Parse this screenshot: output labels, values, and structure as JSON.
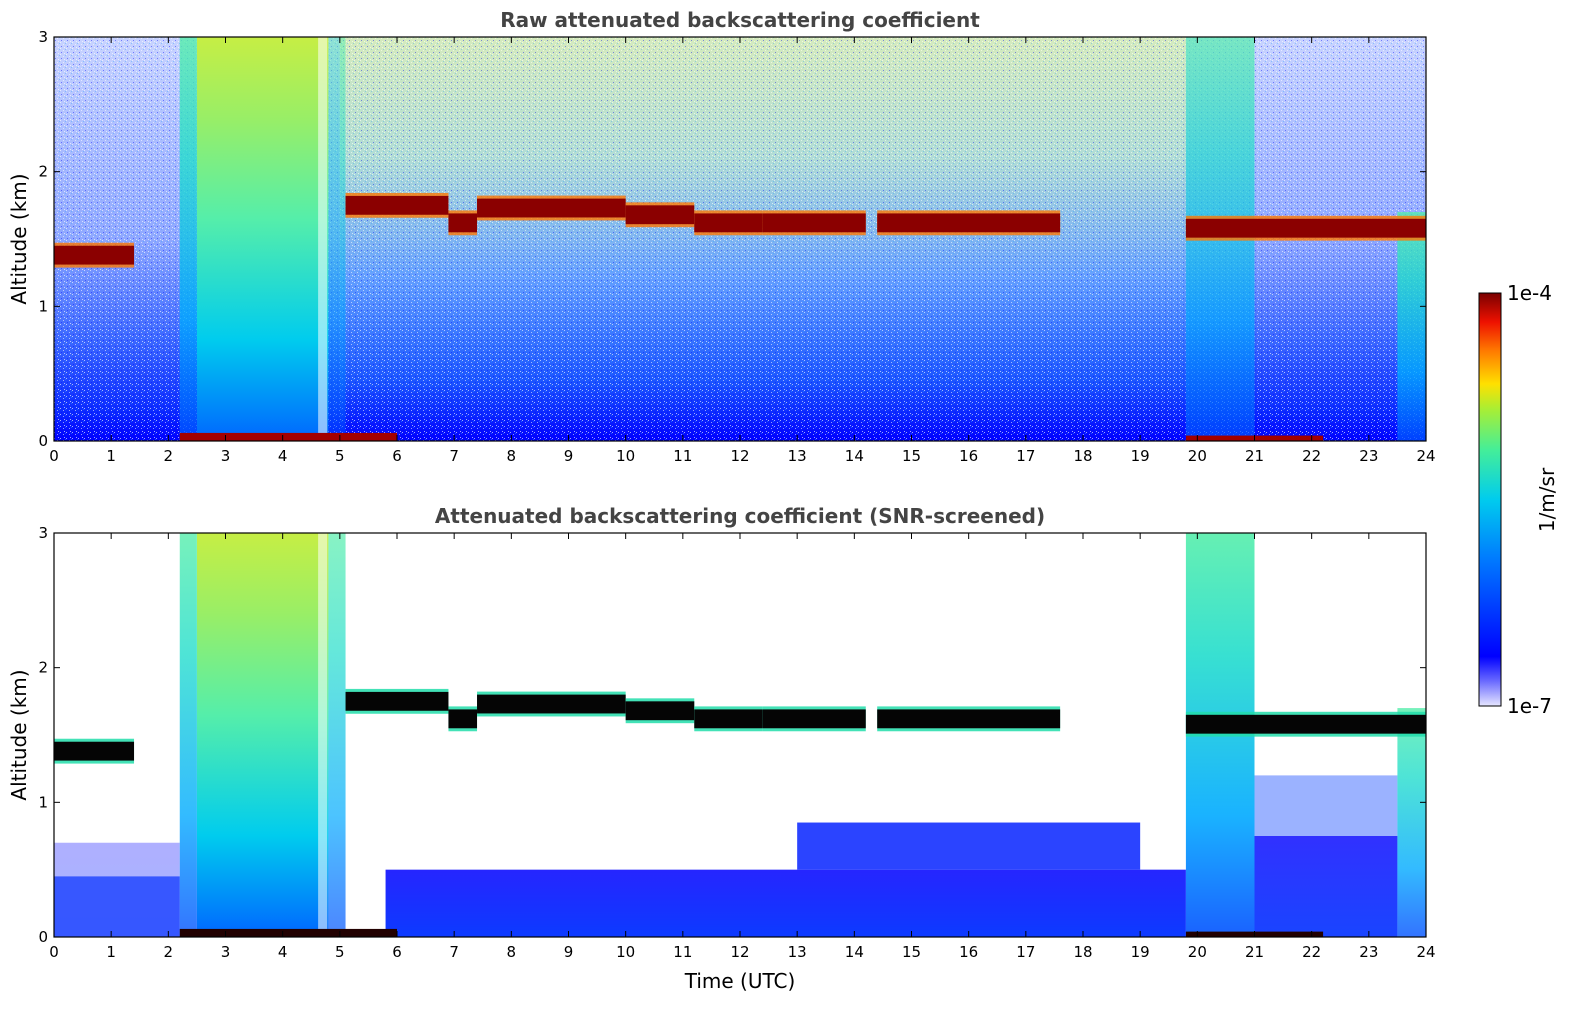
{
  "chart_data": [
    {
      "type": "heatmap",
      "id": "raw",
      "title": "Raw attenuated backscattering coefficient",
      "xlabel": "",
      "ylabel": "Altitude (km)",
      "xlim": [
        0,
        24
      ],
      "ylim": [
        0,
        3
      ],
      "xticks": [
        "0",
        "1",
        "2",
        "3",
        "4",
        "5",
        "6",
        "7",
        "8",
        "9",
        "10",
        "11",
        "12",
        "13",
        "14",
        "15",
        "16",
        "17",
        "18",
        "19",
        "20",
        "21",
        "22",
        "23",
        "24"
      ],
      "yticks": [
        "0",
        "1",
        "2",
        "3"
      ],
      "screened": false,
      "cloud_layers": [
        {
          "t_start": 0.0,
          "t_end": 1.4,
          "alt_km": 1.38
        },
        {
          "t_start": 5.1,
          "t_end": 6.9,
          "alt_km": 1.75
        },
        {
          "t_start": 6.9,
          "t_end": 7.4,
          "alt_km": 1.62
        },
        {
          "t_start": 7.4,
          "t_end": 10.0,
          "alt_km": 1.73
        },
        {
          "t_start": 10.0,
          "t_end": 11.2,
          "alt_km": 1.68
        },
        {
          "t_start": 11.2,
          "t_end": 12.4,
          "alt_km": 1.62
        },
        {
          "t_start": 12.4,
          "t_end": 14.2,
          "alt_km": 1.62
        },
        {
          "t_start": 14.4,
          "t_end": 17.6,
          "alt_km": 1.62
        },
        {
          "t_start": 19.8,
          "t_end": 24.0,
          "alt_km": 1.58
        }
      ]
    },
    {
      "type": "heatmap",
      "id": "snr",
      "title": "Attenuated backscattering coefficient (SNR-screened)",
      "xlabel": "Time (UTC)",
      "ylabel": "Altitude (km)",
      "xlim": [
        0,
        24
      ],
      "ylim": [
        0,
        3
      ],
      "xticks": [
        "0",
        "1",
        "2",
        "3",
        "4",
        "5",
        "6",
        "7",
        "8",
        "9",
        "10",
        "11",
        "12",
        "13",
        "14",
        "15",
        "16",
        "17",
        "18",
        "19",
        "20",
        "21",
        "22",
        "23",
        "24"
      ],
      "yticks": [
        "0",
        "1",
        "2",
        "3"
      ],
      "screened": true,
      "cloud_layers": [
        {
          "t_start": 0.0,
          "t_end": 1.4,
          "alt_km": 1.38
        },
        {
          "t_start": 5.1,
          "t_end": 6.9,
          "alt_km": 1.75
        },
        {
          "t_start": 6.9,
          "t_end": 7.4,
          "alt_km": 1.62
        },
        {
          "t_start": 7.4,
          "t_end": 10.0,
          "alt_km": 1.73
        },
        {
          "t_start": 10.0,
          "t_end": 11.2,
          "alt_km": 1.68
        },
        {
          "t_start": 11.2,
          "t_end": 12.4,
          "alt_km": 1.62
        },
        {
          "t_start": 12.4,
          "t_end": 14.2,
          "alt_km": 1.62
        },
        {
          "t_start": 14.4,
          "t_end": 17.6,
          "alt_km": 1.62
        },
        {
          "t_start": 19.8,
          "t_end": 24.0,
          "alt_km": 1.58
        }
      ]
    }
  ],
  "colorbar": {
    "label": "1/m/sr",
    "max_label": "1e-4",
    "min_label": "1e-7",
    "colormap": [
      "#0000ff",
      "#00bfff",
      "#44ee99",
      "#ffe000",
      "#ff3300",
      "#7a0000"
    ]
  }
}
